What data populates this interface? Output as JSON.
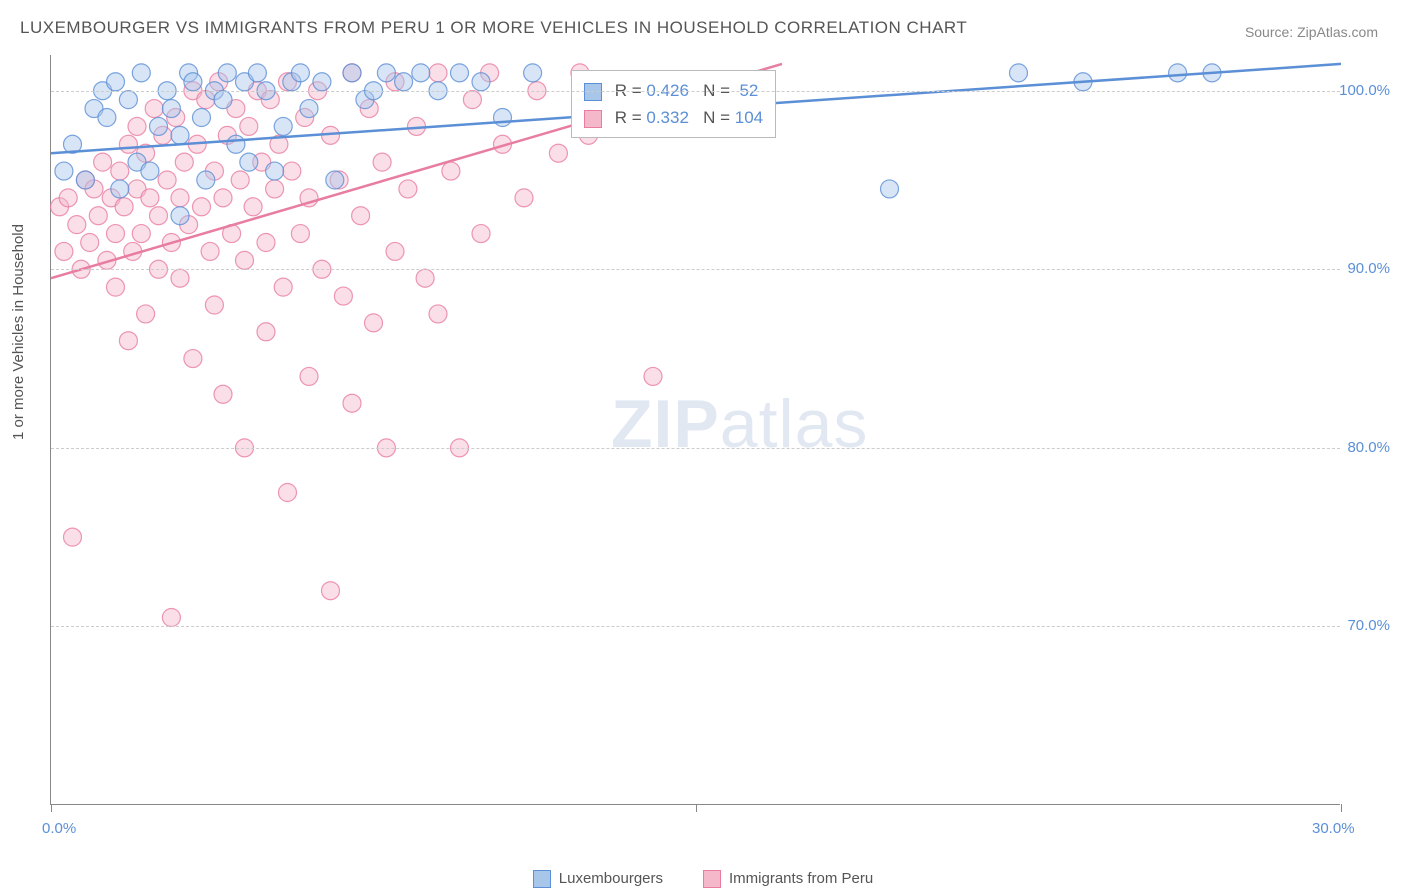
{
  "title": "LUXEMBOURGER VS IMMIGRANTS FROM PERU 1 OR MORE VEHICLES IN HOUSEHOLD CORRELATION CHART",
  "source": "Source: ZipAtlas.com",
  "y_axis_label": "1 or more Vehicles in Household",
  "watermark": {
    "bold": "ZIP",
    "rest": "atlas"
  },
  "chart": {
    "type": "scatter",
    "background_color": "#ffffff",
    "grid_color": "#cccccc",
    "axis_color": "#888888",
    "xlim": [
      0,
      30
    ],
    "ylim": [
      60,
      102
    ],
    "x_ticks": [
      0,
      15,
      30
    ],
    "x_tick_labels": [
      "0.0%",
      "",
      "30.0%"
    ],
    "y_ticks": [
      70,
      80,
      90,
      100
    ],
    "y_tick_labels": [
      "70.0%",
      "80.0%",
      "90.0%",
      "100.0%"
    ],
    "marker_radius": 9,
    "marker_opacity": 0.45,
    "line_width": 2.5,
    "series": [
      {
        "name": "Luxembourgers",
        "color": "#5b8fd6",
        "fill": "#a8c5ea",
        "R": "0.426",
        "N": "52",
        "trend": {
          "x1": 0,
          "y1": 96.5,
          "x2": 30,
          "y2": 101.5
        },
        "points": [
          [
            0.3,
            95.5
          ],
          [
            0.5,
            97.0
          ],
          [
            0.8,
            95.0
          ],
          [
            1.0,
            99.0
          ],
          [
            1.2,
            100.0
          ],
          [
            1.3,
            98.5
          ],
          [
            1.5,
            100.5
          ],
          [
            1.6,
            94.5
          ],
          [
            1.8,
            99.5
          ],
          [
            2.0,
            96.0
          ],
          [
            2.1,
            101.0
          ],
          [
            2.3,
            95.5
          ],
          [
            2.5,
            98.0
          ],
          [
            2.7,
            100.0
          ],
          [
            2.8,
            99.0
          ],
          [
            3.0,
            97.5
          ],
          [
            3.0,
            93.0
          ],
          [
            3.2,
            101.0
          ],
          [
            3.3,
            100.5
          ],
          [
            3.5,
            98.5
          ],
          [
            3.6,
            95.0
          ],
          [
            3.8,
            100.0
          ],
          [
            4.0,
            99.5
          ],
          [
            4.1,
            101.0
          ],
          [
            4.3,
            97.0
          ],
          [
            4.5,
            100.5
          ],
          [
            4.6,
            96.0
          ],
          [
            4.8,
            101.0
          ],
          [
            5.0,
            100.0
          ],
          [
            5.2,
            95.5
          ],
          [
            5.4,
            98.0
          ],
          [
            5.6,
            100.5
          ],
          [
            5.8,
            101.0
          ],
          [
            6.0,
            99.0
          ],
          [
            6.3,
            100.5
          ],
          [
            6.6,
            95.0
          ],
          [
            7.0,
            101.0
          ],
          [
            7.3,
            99.5
          ],
          [
            7.5,
            100.0
          ],
          [
            7.8,
            101.0
          ],
          [
            8.2,
            100.5
          ],
          [
            8.6,
            101.0
          ],
          [
            9.0,
            100.0
          ],
          [
            9.5,
            101.0
          ],
          [
            10.0,
            100.5
          ],
          [
            10.5,
            98.5
          ],
          [
            11.2,
            101.0
          ],
          [
            19.5,
            94.5
          ],
          [
            22.5,
            101.0
          ],
          [
            24.0,
            100.5
          ],
          [
            26.2,
            101.0
          ],
          [
            27.0,
            101.0
          ]
        ]
      },
      {
        "name": "Immigrants from Peru",
        "color": "#e87da0",
        "fill": "#f5b8cb",
        "R": "0.332",
        "N": "104",
        "trend": {
          "x1": 0,
          "y1": 89.5,
          "x2": 17,
          "y2": 101.5
        },
        "points": [
          [
            0.2,
            93.5
          ],
          [
            0.3,
            91.0
          ],
          [
            0.4,
            94.0
          ],
          [
            0.5,
            75.0
          ],
          [
            0.6,
            92.5
          ],
          [
            0.7,
            90.0
          ],
          [
            0.8,
            95.0
          ],
          [
            0.9,
            91.5
          ],
          [
            1.0,
            94.5
          ],
          [
            1.1,
            93.0
          ],
          [
            1.2,
            96.0
          ],
          [
            1.3,
            90.5
          ],
          [
            1.4,
            94.0
          ],
          [
            1.5,
            92.0
          ],
          [
            1.5,
            89.0
          ],
          [
            1.6,
            95.5
          ],
          [
            1.7,
            93.5
          ],
          [
            1.8,
            97.0
          ],
          [
            1.8,
            86.0
          ],
          [
            1.9,
            91.0
          ],
          [
            2.0,
            98.0
          ],
          [
            2.0,
            94.5
          ],
          [
            2.1,
            92.0
          ],
          [
            2.2,
            96.5
          ],
          [
            2.2,
            87.5
          ],
          [
            2.3,
            94.0
          ],
          [
            2.4,
            99.0
          ],
          [
            2.5,
            93.0
          ],
          [
            2.5,
            90.0
          ],
          [
            2.6,
            97.5
          ],
          [
            2.7,
            95.0
          ],
          [
            2.8,
            91.5
          ],
          [
            2.8,
            70.5
          ],
          [
            2.9,
            98.5
          ],
          [
            3.0,
            94.0
          ],
          [
            3.0,
            89.5
          ],
          [
            3.1,
            96.0
          ],
          [
            3.2,
            92.5
          ],
          [
            3.3,
            100.0
          ],
          [
            3.3,
            85.0
          ],
          [
            3.4,
            97.0
          ],
          [
            3.5,
            93.5
          ],
          [
            3.6,
            99.5
          ],
          [
            3.7,
            91.0
          ],
          [
            3.8,
            95.5
          ],
          [
            3.8,
            88.0
          ],
          [
            3.9,
            100.5
          ],
          [
            4.0,
            94.0
          ],
          [
            4.0,
            83.0
          ],
          [
            4.1,
            97.5
          ],
          [
            4.2,
            92.0
          ],
          [
            4.3,
            99.0
          ],
          [
            4.4,
            95.0
          ],
          [
            4.5,
            90.5
          ],
          [
            4.5,
            80.0
          ],
          [
            4.6,
            98.0
          ],
          [
            4.7,
            93.5
          ],
          [
            4.8,
            100.0
          ],
          [
            4.9,
            96.0
          ],
          [
            5.0,
            91.5
          ],
          [
            5.0,
            86.5
          ],
          [
            5.1,
            99.5
          ],
          [
            5.2,
            94.5
          ],
          [
            5.3,
            97.0
          ],
          [
            5.4,
            89.0
          ],
          [
            5.5,
            100.5
          ],
          [
            5.5,
            77.5
          ],
          [
            5.6,
            95.5
          ],
          [
            5.8,
            92.0
          ],
          [
            5.9,
            98.5
          ],
          [
            6.0,
            84.0
          ],
          [
            6.0,
            94.0
          ],
          [
            6.2,
            100.0
          ],
          [
            6.3,
            90.0
          ],
          [
            6.5,
            97.5
          ],
          [
            6.5,
            72.0
          ],
          [
            6.7,
            95.0
          ],
          [
            6.8,
            88.5
          ],
          [
            7.0,
            101.0
          ],
          [
            7.0,
            82.5
          ],
          [
            7.2,
            93.0
          ],
          [
            7.4,
            99.0
          ],
          [
            7.5,
            87.0
          ],
          [
            7.7,
            96.0
          ],
          [
            7.8,
            80.0
          ],
          [
            8.0,
            100.5
          ],
          [
            8.0,
            91.0
          ],
          [
            8.3,
            94.5
          ],
          [
            8.5,
            98.0
          ],
          [
            8.7,
            89.5
          ],
          [
            9.0,
            101.0
          ],
          [
            9.0,
            87.5
          ],
          [
            9.3,
            95.5
          ],
          [
            9.5,
            80.0
          ],
          [
            9.8,
            99.5
          ],
          [
            10.0,
            92.0
          ],
          [
            10.2,
            101.0
          ],
          [
            10.5,
            97.0
          ],
          [
            11.0,
            94.0
          ],
          [
            11.3,
            100.0
          ],
          [
            11.8,
            96.5
          ],
          [
            12.3,
            101.0
          ],
          [
            12.5,
            97.5
          ],
          [
            14.0,
            84.0
          ]
        ]
      }
    ]
  },
  "legend_labels": [
    "Luxembourgers",
    "Immigrants from Peru"
  ],
  "stats_box": {
    "rows": [
      {
        "swatch_fill": "#a8c5ea",
        "swatch_border": "#5b8fd6",
        "R": "0.426",
        "N": "52"
      },
      {
        "swatch_fill": "#f5b8cb",
        "swatch_border": "#e87da0",
        "R": "0.332",
        "N": "104"
      }
    ]
  }
}
